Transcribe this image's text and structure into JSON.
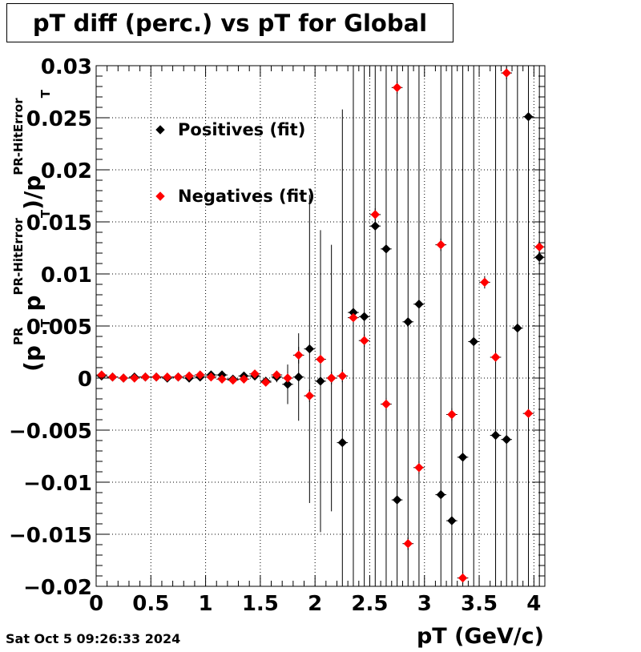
{
  "title": "pT diff (perc.) vs pT for Global",
  "timestamp": "Sat Oct  5 09:26:33 2024",
  "chart_data": {
    "type": "scatter",
    "title": "pT diff (perc.) vs pT for Global",
    "xlabel": "pT (GeV/c)",
    "ylabel_parts": {
      "open": "(p",
      "sup1": "PR",
      "sub1": "T",
      "minus": " p",
      "sup2": "PR-HitError",
      "sub2": "T",
      "close": ")/p",
      "sup3": "PR-HitError",
      "sub3": "T"
    },
    "xlim": [
      0,
      4.1
    ],
    "ylim": [
      -0.02,
      0.03
    ],
    "x_ticks": [
      "0",
      "0.5",
      "1",
      "1.5",
      "2",
      "2.5",
      "3",
      "3.5",
      "4"
    ],
    "x_tick_values": [
      0,
      0.5,
      1,
      1.5,
      2,
      2.5,
      3,
      3.5,
      4
    ],
    "y_ticks": [
      "0.03",
      "0.025",
      "0.02",
      "0.015",
      "0.01",
      "0.005",
      "0",
      "−0.005",
      "−0.01",
      "−0.015",
      "−0.02"
    ],
    "y_tick_values": [
      0.03,
      0.025,
      0.02,
      0.015,
      0.01,
      0.005,
      0,
      -0.005,
      -0.01,
      -0.015,
      -0.02
    ],
    "grid": true,
    "legend_placement": "top-left",
    "series": [
      {
        "name": "Positives (fit)",
        "color": "#000000",
        "points": [
          [
            0.05,
            0.0002,
            0.0002
          ],
          [
            0.15,
            0.0001,
            0.0002
          ],
          [
            0.25,
            0.0,
            0.0002
          ],
          [
            0.35,
            0.0001,
            0.0002
          ],
          [
            0.45,
            0.0001,
            0.0002
          ],
          [
            0.55,
            0.0001,
            0.0002
          ],
          [
            0.65,
            0.0,
            0.0002
          ],
          [
            0.75,
            0.0001,
            0.0002
          ],
          [
            0.85,
            0.0,
            0.0002
          ],
          [
            0.95,
            0.0001,
            0.0002
          ],
          [
            1.05,
            0.0003,
            0.0002
          ],
          [
            1.15,
            0.0003,
            0.0002
          ],
          [
            1.25,
            -0.0001,
            0.0002
          ],
          [
            1.35,
            0.0002,
            0.0003
          ],
          [
            1.45,
            0.0002,
            0.0003
          ],
          [
            1.55,
            -0.0003,
            0.0004
          ],
          [
            1.65,
            0.0001,
            0.0005
          ],
          [
            1.75,
            -0.0006,
            0.0019
          ],
          [
            1.85,
            0.0001,
            0.0042
          ],
          [
            1.95,
            0.0028,
            0.0148
          ],
          [
            2.05,
            -0.0003,
            0.0145
          ],
          [
            2.15,
            0.0,
            0.0128
          ],
          [
            2.25,
            -0.0062,
            0.032
          ],
          [
            2.35,
            0.0063,
            0.045
          ],
          [
            2.45,
            0.0059,
            0.045
          ],
          [
            2.55,
            0.0146,
            0.05
          ],
          [
            2.65,
            0.0124,
            0.05
          ],
          [
            2.75,
            -0.0117,
            0.05
          ],
          [
            2.85,
            0.0054,
            0.05
          ],
          [
            2.95,
            0.0071,
            0.05
          ],
          [
            3.15,
            -0.0112,
            0.05
          ],
          [
            3.25,
            -0.0137,
            0.05
          ],
          [
            3.35,
            -0.0076,
            0.05
          ],
          [
            3.45,
            0.0035,
            0.05
          ],
          [
            3.65,
            -0.0055,
            0.05
          ],
          [
            3.75,
            -0.0059,
            0.05
          ],
          [
            3.85,
            0.0048,
            0.05
          ],
          [
            3.95,
            0.0251,
            0.05
          ],
          [
            4.05,
            0.0116,
            0.05
          ]
        ]
      },
      {
        "name": "Negatives (fit)",
        "color": "#ff0000",
        "points": [
          [
            0.05,
            0.0003,
            0.0002
          ],
          [
            0.15,
            0.0001,
            0.0002
          ],
          [
            0.25,
            0.0,
            0.0002
          ],
          [
            0.35,
            0.0,
            0.0002
          ],
          [
            0.45,
            0.0001,
            0.0002
          ],
          [
            0.55,
            0.0001,
            0.0002
          ],
          [
            0.65,
            0.0001,
            0.0002
          ],
          [
            0.75,
            0.0001,
            0.0002
          ],
          [
            0.85,
            0.0002,
            0.0002
          ],
          [
            0.95,
            0.0003,
            0.0002
          ],
          [
            1.05,
            0.0001,
            0.0002
          ],
          [
            1.15,
            -0.0001,
            0.0002
          ],
          [
            1.25,
            -0.0002,
            0.0002
          ],
          [
            1.35,
            -0.0001,
            0.0002
          ],
          [
            1.45,
            0.0004,
            0.0002
          ],
          [
            1.55,
            -0.0004,
            0.0003
          ],
          [
            1.65,
            0.0003,
            0.0004
          ],
          [
            1.75,
            0.0,
            0.0006
          ],
          [
            1.85,
            0.0022,
            0.0008
          ],
          [
            1.95,
            -0.0017,
            0.0006
          ],
          [
            2.05,
            0.0018,
            0.0006
          ],
          [
            2.15,
            0.0,
            0.0006
          ],
          [
            2.25,
            0.0002,
            0.0006
          ],
          [
            2.35,
            0.0058,
            0.0006
          ],
          [
            2.45,
            0.0036,
            0.0006
          ],
          [
            2.55,
            0.0157,
            0.0006
          ],
          [
            2.65,
            -0.0025,
            0.0006
          ],
          [
            2.75,
            0.0279,
            0.0006
          ],
          [
            2.85,
            -0.0159,
            0.0006
          ],
          [
            2.95,
            -0.0086,
            0.0006
          ],
          [
            3.15,
            0.0128,
            0.0006
          ],
          [
            3.25,
            -0.0035,
            0.0006
          ],
          [
            3.35,
            -0.0192,
            0.0006
          ],
          [
            3.55,
            0.0092,
            0.0006
          ],
          [
            3.65,
            0.002,
            0.0006
          ],
          [
            3.75,
            0.0293,
            0.0006
          ],
          [
            3.95,
            -0.0034,
            0.0006
          ],
          [
            4.05,
            0.0126,
            0.0006
          ]
        ]
      }
    ]
  }
}
